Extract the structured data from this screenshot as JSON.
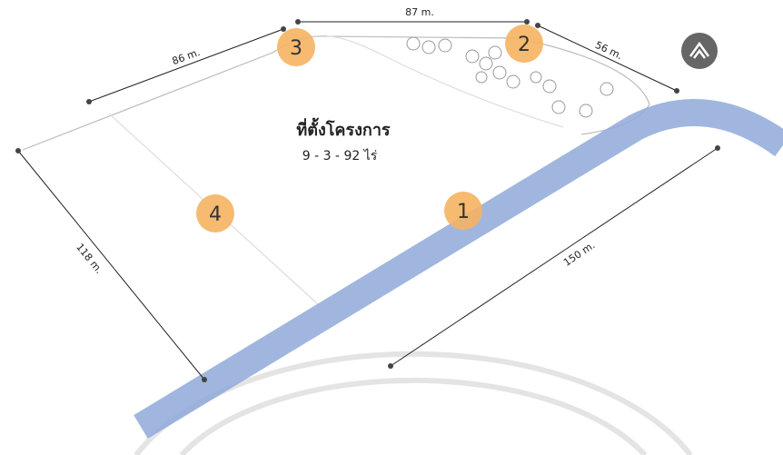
{
  "title": "ที่ตั้งโครงการ",
  "subtitle": "9 - 3 - 92 ไร่",
  "dimensions": [
    "86 m.",
    "87 m.",
    "56 m.",
    "118 m.",
    "150 m."
  ],
  "markers": [
    "1",
    "2",
    "3",
    "4"
  ]
}
